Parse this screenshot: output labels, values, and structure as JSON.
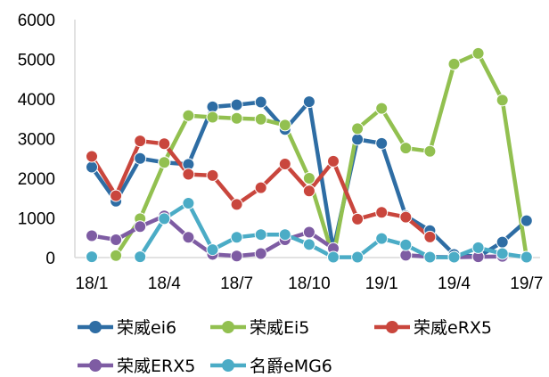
{
  "chart_data": {
    "type": "line",
    "title": "",
    "xlabel": "",
    "ylabel": "",
    "ylim": [
      0,
      6000
    ],
    "yticks": [
      0,
      1000,
      2000,
      3000,
      4000,
      5000,
      6000
    ],
    "x_tick_labels": [
      "18/1",
      "18/4",
      "18/7",
      "18/10",
      "19/1",
      "19/4",
      "19/7"
    ],
    "x_tick_index": [
      0,
      3,
      6,
      9,
      12,
      15,
      18
    ],
    "categories": [
      "18/1",
      "18/2",
      "18/3",
      "18/4",
      "18/5",
      "18/6",
      "18/7",
      "18/8",
      "18/9",
      "18/10",
      "18/11",
      "18/12",
      "19/1",
      "19/2",
      "19/3",
      "19/4",
      "19/5",
      "19/6",
      "19/7"
    ],
    "grid": false,
    "legend_position": "bottom",
    "series": [
      {
        "name": "荣威ei6",
        "color": "#2E6DA4",
        "values": [
          2280,
          1420,
          2500,
          2400,
          2350,
          3800,
          3850,
          3920,
          3230,
          3930,
          200,
          2980,
          2880,
          1050,
          680,
          80,
          20,
          390,
          930
        ]
      },
      {
        "name": "荣威Ei5",
        "color": "#92C050",
        "values": [
          null,
          50,
          980,
          2400,
          3580,
          3540,
          3510,
          3490,
          3340,
          2000,
          10,
          3250,
          3760,
          2760,
          2680,
          4880,
          5150,
          3970,
          10
        ]
      },
      {
        "name": "荣威eRX5",
        "color": "#C9463D",
        "values": [
          2550,
          1560,
          2940,
          2870,
          2100,
          2070,
          1340,
          1760,
          2360,
          1680,
          2430,
          970,
          1140,
          1020,
          520,
          null,
          null,
          null,
          null
        ]
      },
      {
        "name": "荣威ERX5",
        "color": "#7E5CA3",
        "values": [
          550,
          450,
          780,
          1050,
          510,
          80,
          40,
          100,
          450,
          640,
          230,
          null,
          null,
          60,
          20,
          10,
          20,
          30,
          null
        ]
      },
      {
        "name": "名爵eMG6",
        "color": "#4BACC6",
        "values": [
          20,
          null,
          20,
          980,
          1370,
          200,
          510,
          580,
          580,
          330,
          10,
          10,
          480,
          320,
          10,
          10,
          250,
          100,
          10
        ]
      }
    ]
  }
}
